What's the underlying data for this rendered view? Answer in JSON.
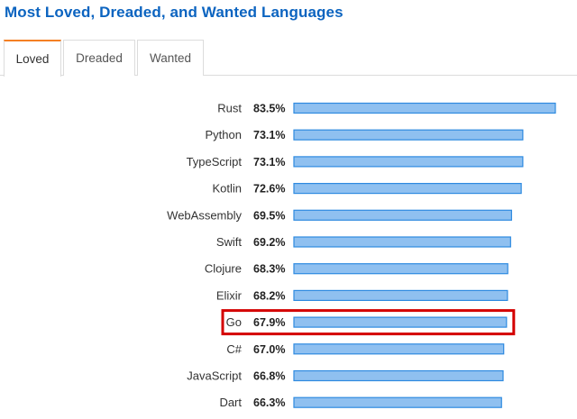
{
  "header": {
    "title": "Most Loved, Dreaded, and Wanted Languages"
  },
  "tabs": [
    {
      "label": "Loved",
      "active": true
    },
    {
      "label": "Dreaded",
      "active": false
    },
    {
      "label": "Wanted",
      "active": false
    }
  ],
  "colors": {
    "title": "#0c64c0",
    "active_tab_accent": "#f48024",
    "bar_fill": "#8fc0f0",
    "bar_stroke": "#2e8ae0",
    "highlight": "#d40000"
  },
  "chart_data": {
    "type": "bar",
    "orientation": "horizontal",
    "categories": [
      "Rust",
      "Python",
      "TypeScript",
      "Kotlin",
      "WebAssembly",
      "Swift",
      "Clojure",
      "Elixir",
      "Go",
      "C#",
      "JavaScript",
      "Dart"
    ],
    "values": [
      83.5,
      73.1,
      73.1,
      72.6,
      69.5,
      69.2,
      68.3,
      68.2,
      67.9,
      67.0,
      66.8,
      66.3
    ],
    "value_labels": [
      "83.5%",
      "73.1%",
      "73.1%",
      "72.6%",
      "69.5%",
      "69.2%",
      "68.3%",
      "68.2%",
      "67.9%",
      "67.0%",
      "66.8%",
      "66.3%"
    ],
    "unit": "%",
    "highlighted": "Go",
    "xlim": [
      0,
      83.5
    ],
    "grid": false,
    "legend": "none"
  }
}
